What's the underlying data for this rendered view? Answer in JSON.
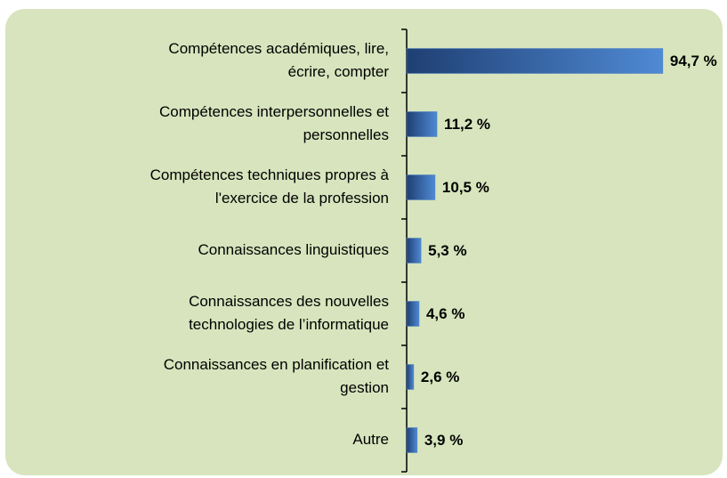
{
  "chart_data": {
    "type": "barh",
    "categories": [
      [
        "Compétences académiques, lire,",
        "écrire, compter"
      ],
      [
        "Compétences interpersonnelles et",
        "personnelles"
      ],
      [
        "Compétences techniques propres à",
        "l'exercice de la profession"
      ],
      [
        "Connaissances linguistiques"
      ],
      [
        "Connaissances des nouvelles",
        "technologies de l’informatique"
      ],
      [
        "Connaissances en planification et",
        "gestion"
      ],
      [
        "Autre"
      ]
    ],
    "values": [
      94.7,
      11.2,
      10.5,
      5.3,
      4.6,
      2.6,
      3.9
    ],
    "value_labels": [
      "94,7 %",
      "11,2 %",
      "10,5 %",
      "5,3 %",
      "4,6 %",
      "2,6 %",
      "3,9 %"
    ],
    "color": "#4a7ec4",
    "xlim": [
      0,
      100
    ]
  }
}
